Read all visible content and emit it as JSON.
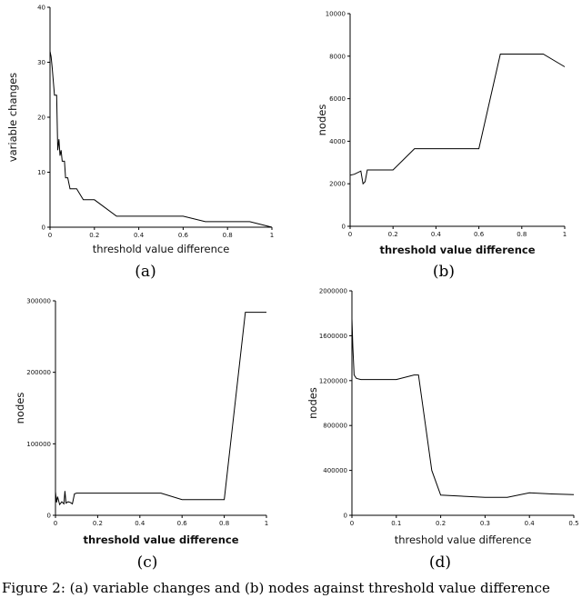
{
  "chart_data": [
    {
      "id": "a",
      "type": "line",
      "panel_label": "(a)",
      "xlabel": "threshold value difference",
      "ylabel": "variable changes",
      "xlim": [
        0,
        1
      ],
      "ylim": [
        0,
        40
      ],
      "xticks": [
        0,
        0.2,
        0.4,
        0.6,
        0.8,
        1
      ],
      "yticks": [
        0,
        10,
        20,
        30,
        40
      ],
      "xtick_labels": [
        "0",
        "0.2",
        "0.4",
        "0.6",
        "0.8",
        "1"
      ],
      "ytick_labels": [
        "0",
        "10",
        "20",
        "30",
        "40"
      ],
      "grid": false,
      "series": [
        {
          "x": [
            0,
            0.005,
            0.01,
            0.02,
            0.03,
            0.035,
            0.04,
            0.045,
            0.05,
            0.055,
            0.06,
            0.065,
            0.07,
            0.08,
            0.09,
            0.1,
            0.12,
            0.15,
            0.17,
            0.2,
            0.3,
            0.4,
            0.5,
            0.6,
            0.7,
            0.8,
            0.9,
            1.0
          ],
          "y": [
            32,
            31,
            29,
            24,
            24,
            14,
            16,
            13,
            14,
            12,
            12,
            12,
            9,
            9,
            7,
            7,
            7,
            5,
            5,
            5,
            2,
            2,
            2,
            2,
            1,
            1,
            1,
            0
          ]
        }
      ]
    },
    {
      "id": "b",
      "type": "line",
      "panel_label": "(b)",
      "xlabel": "threshold value difference",
      "ylabel": "nodes",
      "xlim": [
        0,
        1
      ],
      "ylim": [
        0,
        10000
      ],
      "xticks": [
        0,
        0.2,
        0.4,
        0.6,
        0.8,
        1
      ],
      "yticks": [
        0,
        2000,
        4000,
        6000,
        8000,
        10000
      ],
      "xtick_labels": [
        "0",
        "0.2",
        "0.4",
        "0.6",
        "0.8",
        "1"
      ],
      "ytick_labels": [
        "0",
        "2000",
        "4000",
        "6000",
        "8000",
        "10000"
      ],
      "grid": false,
      "series": [
        {
          "x": [
            0,
            0.02,
            0.05,
            0.06,
            0.07,
            0.08,
            0.1,
            0.15,
            0.2,
            0.3,
            0.4,
            0.5,
            0.6,
            0.7,
            0.8,
            0.9,
            1.0
          ],
          "y": [
            2400,
            2450,
            2600,
            2000,
            2100,
            2650,
            2650,
            2650,
            2650,
            3650,
            3650,
            3650,
            3650,
            8100,
            8100,
            8100,
            7500
          ]
        }
      ]
    },
    {
      "id": "c",
      "type": "line",
      "panel_label": "(c)",
      "xlabel": "threshold value difference",
      "ylabel": "nodes",
      "xlim": [
        0,
        1
      ],
      "ylim": [
        0,
        300000
      ],
      "xticks": [
        0,
        0.2,
        0.4,
        0.6,
        0.8,
        1
      ],
      "yticks": [
        0,
        100000,
        200000,
        300000
      ],
      "xtick_labels": [
        "0",
        "0.2",
        "0.4",
        "0.6",
        "0.8",
        "1"
      ],
      "ytick_labels": [
        "0",
        "100000",
        "200000",
        "300000"
      ],
      "grid": false,
      "series": [
        {
          "x": [
            0,
            0.005,
            0.01,
            0.02,
            0.03,
            0.04,
            0.045,
            0.05,
            0.06,
            0.07,
            0.08,
            0.09,
            0.1,
            0.3,
            0.5,
            0.6,
            0.7,
            0.8,
            0.9,
            1.0
          ],
          "y": [
            33000,
            18000,
            26000,
            15000,
            19000,
            16000,
            34000,
            17000,
            19000,
            18000,
            16000,
            30000,
            31000,
            31000,
            31000,
            22000,
            22000,
            22000,
            284000,
            284000
          ]
        }
      ]
    },
    {
      "id": "d",
      "type": "line",
      "panel_label": "(d)",
      "xlabel": "threshold value difference",
      "ylabel": "nodes",
      "xlim": [
        0,
        0.5
      ],
      "ylim": [
        0,
        2000000
      ],
      "xticks": [
        0,
        0.1,
        0.2,
        0.3,
        0.4,
        0.5
      ],
      "yticks": [
        0,
        400000,
        800000,
        1200000,
        1600000,
        2000000
      ],
      "xtick_labels": [
        "0",
        "0.1",
        "0.2",
        "0.3",
        "0.4",
        "0.5"
      ],
      "ytick_labels": [
        "0",
        "400000",
        "800000",
        "1200000",
        "1600000",
        "2000000"
      ],
      "grid": false,
      "series": [
        {
          "x": [
            0,
            0.002,
            0.005,
            0.01,
            0.02,
            0.05,
            0.1,
            0.14,
            0.15,
            0.18,
            0.2,
            0.3,
            0.35,
            0.4,
            0.45,
            0.5
          ],
          "y": [
            1750000,
            1500000,
            1250000,
            1220000,
            1210000,
            1210000,
            1210000,
            1250000,
            1250000,
            400000,
            180000,
            160000,
            160000,
            200000,
            190000,
            185000
          ]
        }
      ]
    }
  ],
  "caption": {
    "text": "Figure 2: (a) variable changes and (b) nodes against threshold value difference"
  }
}
